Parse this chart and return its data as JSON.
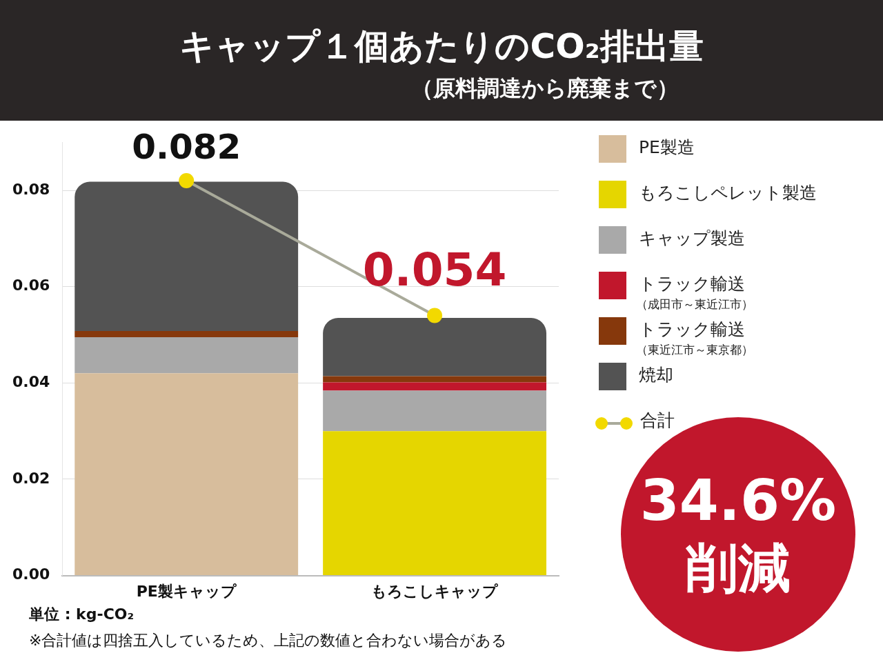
{
  "chart_data": {
    "type": "bar",
    "title": "キャップ１個あたりのCO₂排出量",
    "subtitle": "（原料調達から廃棄まで）",
    "categories": [
      "PE製キャップ",
      "もろこしキャップ"
    ],
    "stacked": true,
    "series": [
      {
        "name": "PE製造",
        "color": "#d7bd9c",
        "values": [
          0.042,
          null
        ]
      },
      {
        "name": "もろこしペレット製造",
        "color": "#e5d600",
        "values": [
          null,
          0.03
        ]
      },
      {
        "name": "キャップ製造",
        "color": "#a9a9a9",
        "values": [
          0.0075,
          0.0084
        ]
      },
      {
        "name": "トラック輸送（成田市～東近江市）",
        "color": "#c1172c",
        "values": [
          null,
          0.0017
        ]
      },
      {
        "name": "トラック輸送（東近江市～東京都）",
        "color": "#86380c",
        "values": [
          0.0013,
          0.0013
        ]
      },
      {
        "name": "焼却",
        "color": "#535353",
        "values": [
          0.031,
          0.0121
        ]
      },
      {
        "name": "合計",
        "type": "line",
        "color": "#a9aa9a",
        "colors": [
          "#f2d900",
          "#f2d900"
        ],
        "marker": "circle",
        "values": [
          0.082,
          0.054
        ],
        "value_labels": [
          "0.082",
          "0.054"
        ]
      }
    ],
    "ylim": [
      0,
      0.09
    ],
    "yticks": [
      {
        "value": 0,
        "label": "0.00"
      },
      0.02,
      0.04,
      0.06,
      0.08
    ],
    "grid": "y",
    "legend": "right",
    "annotations": [
      "34.6%\n削減",
      "単位 : kg-CO₂",
      "※合計値は四捨五入しているため、上記の数値と合わない場合がある"
    ]
  }
}
